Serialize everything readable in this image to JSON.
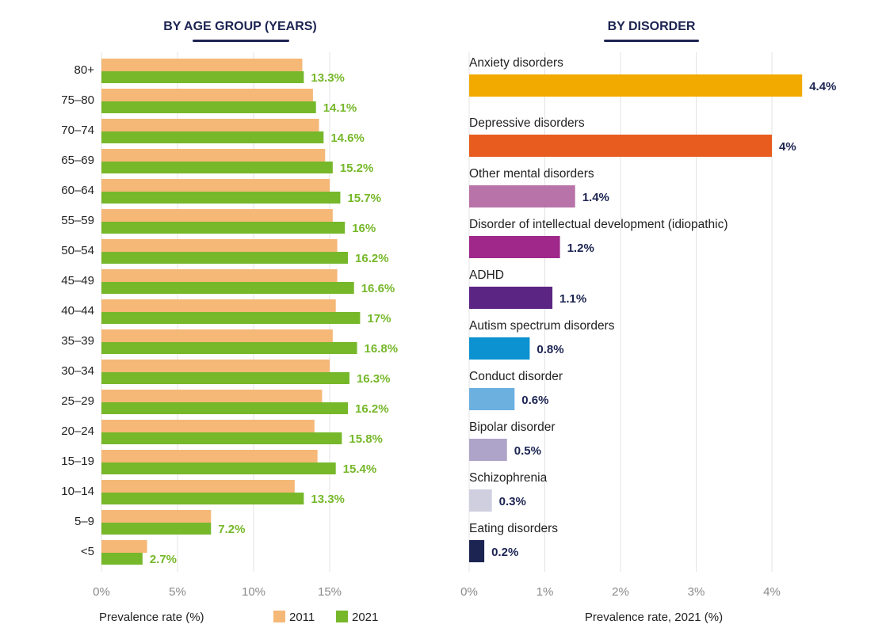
{
  "chart_data": [
    {
      "type": "bar",
      "orientation": "horizontal",
      "title": "BY AGE GROUP (YEARS)",
      "xlabel": "Prevalence rate (%)",
      "xlim": [
        0,
        20
      ],
      "xticks": [
        "0%",
        "5%",
        "10%",
        "15%"
      ],
      "grid": true,
      "legend": "bottom",
      "categories": [
        "80+",
        "75–80",
        "70–74",
        "65–69",
        "60–64",
        "55–59",
        "50–54",
        "45–49",
        "40–44",
        "35–39",
        "30–34",
        "25–29",
        "20–24",
        "15–19",
        "10–14",
        "5–9",
        "<5"
      ],
      "series": [
        {
          "name": "2011",
          "color": "#f5b877",
          "values": [
            13.2,
            13.9,
            14.3,
            14.7,
            15.0,
            15.2,
            15.5,
            15.5,
            15.4,
            15.2,
            15.0,
            14.5,
            14.0,
            14.2,
            12.7,
            7.2,
            3.0
          ]
        },
        {
          "name": "2021",
          "color": "#76b82a",
          "values": [
            13.3,
            14.1,
            14.6,
            15.2,
            15.7,
            16,
            16.2,
            16.6,
            17,
            16.8,
            16.3,
            16.2,
            15.8,
            15.4,
            13.3,
            7.2,
            2.7
          ],
          "labels": [
            "13.3%",
            "14.1%",
            "14.6%",
            "15.2%",
            "15.7%",
            "16%",
            "16.2%",
            "16.6%",
            "17%",
            "16.8%",
            "16.3%",
            "16.2%",
            "15.8%",
            "15.4%",
            "13.3%",
            "7.2%",
            "2.7%"
          ]
        }
      ]
    },
    {
      "type": "bar",
      "orientation": "horizontal",
      "title": "BY DISORDER",
      "xlabel": "Prevalence rate, 2021 (%)",
      "xlim": [
        0,
        4.4
      ],
      "xticks": [
        "0%",
        "1%",
        "2%",
        "3%",
        "4%"
      ],
      "grid": true,
      "categories": [
        "Anxiety disorders",
        "Depressive disorders",
        "Other mental disorders",
        "Disorder of intellectual development (idiopathic)",
        "ADHD",
        "Autism spectrum disorders",
        "Conduct disorder",
        "Bipolar disorder",
        "Schizophrenia",
        "Eating disorders"
      ],
      "values": [
        4.4,
        4,
        1.4,
        1.2,
        1.1,
        0.8,
        0.6,
        0.5,
        0.3,
        0.2
      ],
      "labels": [
        "4.4%",
        "4%",
        "1.4%",
        "1.2%",
        "1.1%",
        "0.8%",
        "0.6%",
        "0.5%",
        "0.3%",
        "0.2%"
      ],
      "colors": [
        "#f2a900",
        "#e85d1f",
        "#b873a8",
        "#a0288a",
        "#5b2584",
        "#0d92d1",
        "#6cb0e0",
        "#aea3c9",
        "#d0cfe0",
        "#1c2452"
      ]
    }
  ]
}
